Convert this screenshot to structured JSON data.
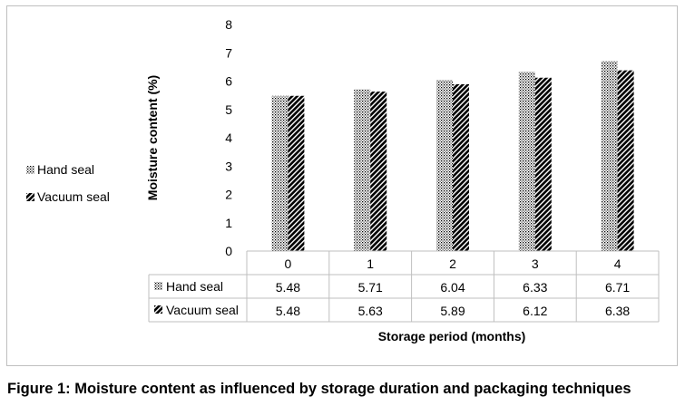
{
  "figure_caption": "Figure 1: Moisture content as influenced by storage duration and packaging techniques",
  "chart_data": {
    "type": "bar",
    "title": "",
    "xlabel": "Storage period (months)",
    "ylabel": "Moisture content (%)",
    "ylim": [
      0,
      8
    ],
    "yticks": [
      "0",
      "1",
      "2",
      "3",
      "4",
      "5",
      "6",
      "7",
      "8"
    ],
    "grid": false,
    "legend_position": "left",
    "categories": [
      "0",
      "1",
      "2",
      "3",
      "4"
    ],
    "series": [
      {
        "name": "Hand seal",
        "pattern": "dotted",
        "values": [
          5.48,
          5.71,
          6.04,
          6.33,
          6.71
        ]
      },
      {
        "name": "Vacuum seal",
        "pattern": "diagonal-hatch",
        "values": [
          5.48,
          5.63,
          5.89,
          6.12,
          6.38
        ]
      }
    ],
    "data_table": {
      "rows": [
        {
          "label": "Hand seal",
          "cells": [
            "5.48",
            "5.71",
            "6.04",
            "6.33",
            "6.71"
          ]
        },
        {
          "label": "Vacuum seal",
          "cells": [
            "5.48",
            "5.63",
            "5.89",
            "6.12",
            "6.38"
          ]
        }
      ]
    },
    "colors": {
      "ink": "#000000",
      "table_border": "#bfbfbf",
      "frame_border": "#bfbfbf"
    }
  }
}
